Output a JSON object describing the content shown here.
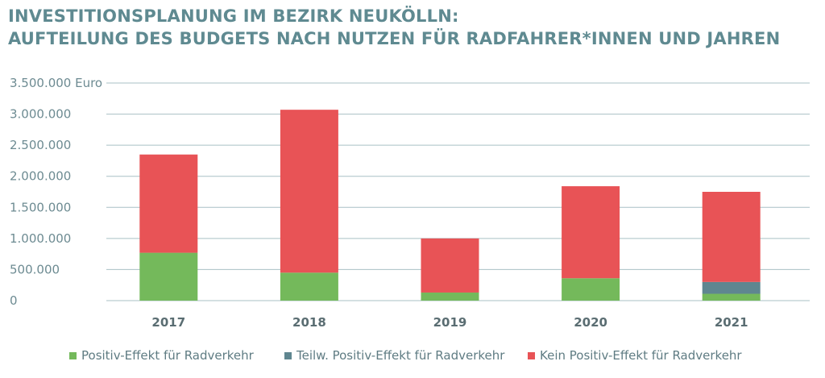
{
  "title": {
    "line1": "INVESTITIONSPLANUNG IM BEZIRK NEUKÖLLN:",
    "line2": "AUFTEILUNG DES BUDGETS NACH NUTZEN FÜR RADFAHRER*INNEN UND JAHREN"
  },
  "chart_data": {
    "type": "bar",
    "stacked": true,
    "categories": [
      "2017",
      "2018",
      "2019",
      "2020",
      "2021"
    ],
    "series": [
      {
        "name": "Positiv-Effekt für Radverkehr",
        "color": "#74b95b",
        "values": [
          770000,
          450000,
          130000,
          360000,
          110000
        ]
      },
      {
        "name": "Teilw. Positiv-Effekt für Radverkehr",
        "color": "#5f8690",
        "values": [
          0,
          0,
          0,
          0,
          190000
        ]
      },
      {
        "name": "Kein Positiv-Effekt für Radverkehr",
        "color": "#e85356",
        "values": [
          1580000,
          2620000,
          870000,
          1480000,
          1450000
        ]
      }
    ],
    "yticks": [
      "0",
      "500.000",
      "1.000.000",
      "1.500.000",
      "2.000.000",
      "2.500.000",
      "3.000.000",
      "3.500.000 Euro"
    ],
    "ylim": [
      0,
      3500000
    ],
    "grid": true,
    "legend_position": "bottom"
  }
}
